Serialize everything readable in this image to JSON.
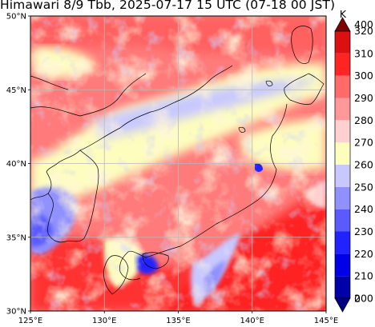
{
  "title": "Himawari 8/9 Tbb, 2025-07-17 15 UTC (07-18 00 JST)",
  "map": {
    "lon_range": [
      125,
      145
    ],
    "lat_range": [
      30,
      50
    ],
    "lat_ticks": [
      {
        "value": 50,
        "label": "50°N"
      },
      {
        "value": 45,
        "label": "45°N"
      },
      {
        "value": 40,
        "label": "40°N"
      },
      {
        "value": 35,
        "label": "35°N"
      },
      {
        "value": 30,
        "label": "30°N"
      }
    ],
    "lon_ticks": [
      {
        "value": 125,
        "label": "125°E"
      },
      {
        "value": 130,
        "label": "130°E"
      },
      {
        "value": 135,
        "label": "135°E"
      },
      {
        "value": 140,
        "label": "140°E"
      },
      {
        "value": 145,
        "label": "145°E"
      }
    ],
    "grid": true
  },
  "colorbar": {
    "unit": "K",
    "levels": [
      200,
      210,
      220,
      230,
      240,
      250,
      260,
      270,
      280,
      290,
      300,
      310,
      320
    ],
    "colors": [
      "#0000a8",
      "#0000e8",
      "#2222ff",
      "#5a5aff",
      "#9090ff",
      "#c8c8ff",
      "#fdfdbe",
      "#ffd0d0",
      "#ff9898",
      "#ff6a6a",
      "#ff2424",
      "#dc1010",
      "#b40000"
    ],
    "under_color": "#000080",
    "over_color": "#800000",
    "labels": [
      {
        "value": 400,
        "text": "400"
      },
      {
        "value": 320,
        "text": "320"
      },
      {
        "value": 310,
        "text": "310"
      },
      {
        "value": 300,
        "text": "300"
      },
      {
        "value": 290,
        "text": "290"
      },
      {
        "value": 280,
        "text": "280"
      },
      {
        "value": 270,
        "text": "270"
      },
      {
        "value": 260,
        "text": "260"
      },
      {
        "value": 250,
        "text": "250"
      },
      {
        "value": 240,
        "text": "240"
      },
      {
        "value": 230,
        "text": "230"
      },
      {
        "value": 220,
        "text": "220"
      },
      {
        "value": 210,
        "text": "210"
      },
      {
        "value": 200,
        "text": "200"
      },
      {
        "value": 0,
        "text": "0"
      }
    ]
  }
}
